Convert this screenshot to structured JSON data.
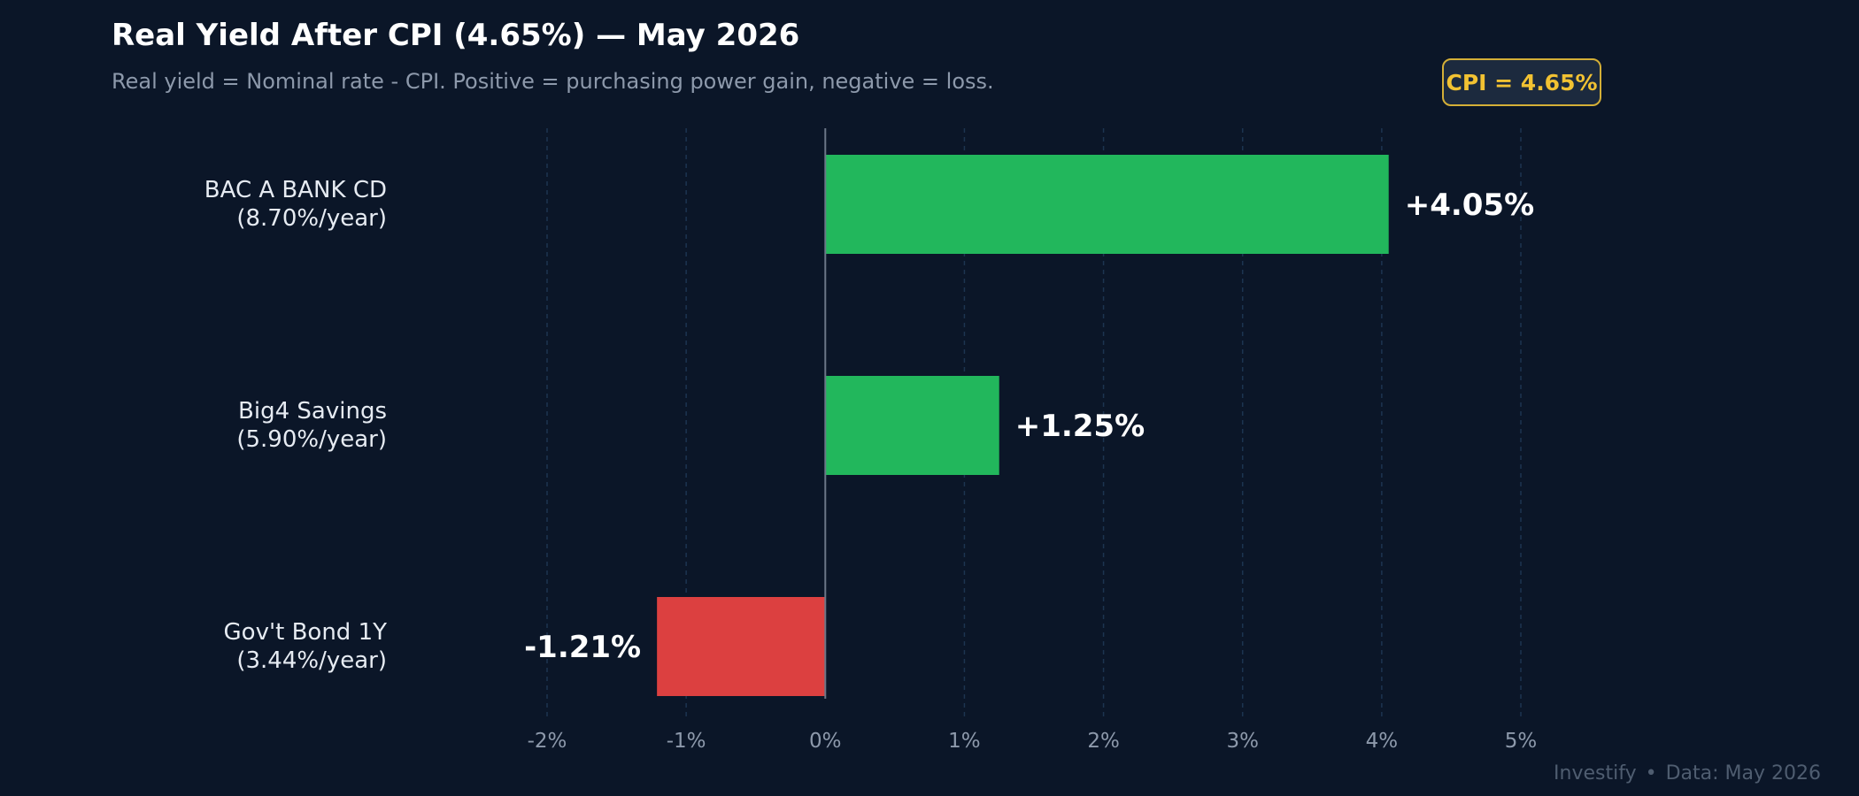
{
  "header": {
    "title": "Real Yield After CPI (4.65%) — May 2026",
    "subtitle": "Real yield = Nominal rate - CPI. Positive = purchasing power gain, negative = loss.",
    "cpi_badge": "CPI = 4.65%"
  },
  "footer": {
    "brand": "Investify",
    "separator": "•",
    "source": "Data: May 2026"
  },
  "colors": {
    "background": "#0b1628",
    "positive": "#22b75c",
    "negative": "#dc4040",
    "gridline": "#1c3450",
    "zero_line": "#6b7687"
  },
  "chart_data": {
    "type": "bar",
    "orientation": "horizontal",
    "title": "Real Yield After CPI (4.65%) — May 2026",
    "subtitle": "Real yield = Nominal rate - CPI. Positive = purchasing power gain, negative = loss.",
    "categories": [
      [
        "BAC A BANK CD",
        "(8.70%/year)"
      ],
      [
        "Big4 Savings",
        "(5.90%/year)"
      ],
      [
        "Gov't Bond 1Y",
        "(3.44%/year)"
      ]
    ],
    "values": [
      4.05,
      1.25,
      -1.21
    ],
    "value_labels": [
      "+4.05%",
      "+1.25%",
      "-1.21%"
    ],
    "xlim": [
      -2,
      5
    ],
    "xticks": [
      -2,
      -1,
      0,
      1,
      2,
      3,
      4,
      5
    ],
    "xtick_labels": [
      "-2%",
      "-1%",
      "0%",
      "1%",
      "2%",
      "3%",
      "4%",
      "5%"
    ],
    "grid": "vertical dashed",
    "legend": "none"
  }
}
